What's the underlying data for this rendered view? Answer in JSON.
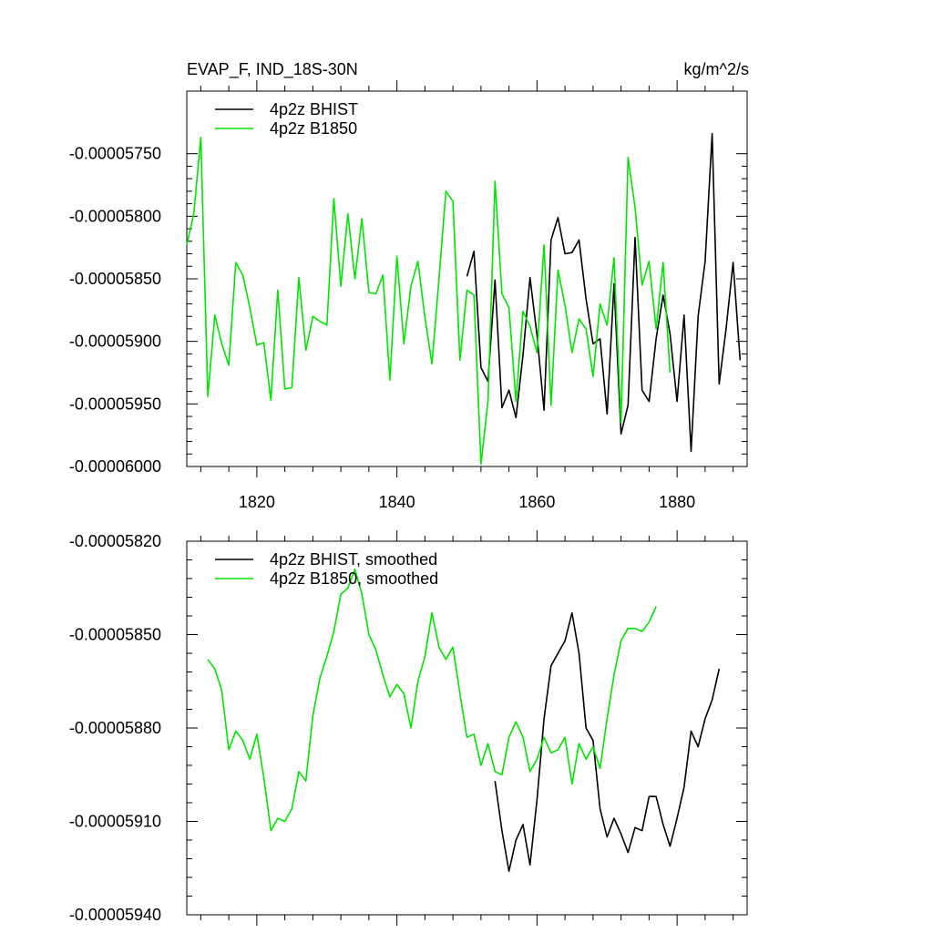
{
  "header": {
    "left_title": "EVAP_F, IND_18S-30N",
    "right_title": "kg/m^2/s"
  },
  "colors": {
    "bhist": "#000000",
    "b1850": "#00e600"
  },
  "chart_data": [
    {
      "type": "line",
      "title": "",
      "xlabel": "",
      "ylabel": "",
      "xlim": [
        1810,
        1890
      ],
      "ylim": [
        -6e-05,
        -5.7e-05
      ],
      "x_ticks": [
        1820,
        1840,
        1860,
        1880
      ],
      "x_tick_labels": [
        "1820",
        "1840",
        "1860",
        "1880"
      ],
      "y_ticks": [
        -5.75e-05,
        -5.8e-05,
        -5.85e-05,
        -5.9e-05,
        -5.95e-05,
        -6e-05
      ],
      "y_tick_labels": [
        "-0.00005750",
        "-0.00005800",
        "-0.00005850",
        "-0.00005900",
        "-0.00005950",
        "-0.00006000"
      ],
      "legend": "top-left",
      "series": [
        {
          "name": "4p2z BHIST",
          "color_key": "bhist",
          "x": [
            1850,
            1851,
            1852,
            1853,
            1854,
            1855,
            1856,
            1857,
            1858,
            1859,
            1860,
            1861,
            1862,
            1863,
            1864,
            1865,
            1866,
            1867,
            1868,
            1869,
            1870,
            1871,
            1872,
            1873,
            1874,
            1875,
            1876,
            1877,
            1878,
            1879,
            1880,
            1881,
            1882,
            1883,
            1884,
            1885,
            1886,
            1887,
            1888,
            1889
          ],
          "y": [
            -5.848e-05,
            -5.828e-05,
            -5.921e-05,
            -5.932e-05,
            -5.851e-05,
            -5.953e-05,
            -5.939e-05,
            -5.961e-05,
            -5.911e-05,
            -5.849e-05,
            -5.895e-05,
            -5.955e-05,
            -5.819e-05,
            -5.801e-05,
            -5.83e-05,
            -5.829e-05,
            -5.819e-05,
            -5.866e-05,
            -5.902e-05,
            -5.898e-05,
            -5.958e-05,
            -5.854e-05,
            -5.974e-05,
            -5.951e-05,
            -5.817e-05,
            -5.939e-05,
            -5.948e-05,
            -5.898e-05,
            -5.863e-05,
            -5.894e-05,
            -5.948e-05,
            -5.879e-05,
            -5.988e-05,
            -5.88e-05,
            -5.836e-05,
            -5.734e-05,
            -5.934e-05,
            -5.89e-05,
            -5.837e-05,
            -5.915e-05
          ]
        },
        {
          "name": "4p2z B1850",
          "color_key": "b1850",
          "x": [
            1810,
            1811,
            1812,
            1813,
            1814,
            1815,
            1816,
            1817,
            1818,
            1819,
            1820,
            1821,
            1822,
            1823,
            1824,
            1825,
            1826,
            1827,
            1828,
            1829,
            1830,
            1831,
            1832,
            1833,
            1834,
            1835,
            1836,
            1837,
            1838,
            1839,
            1840,
            1841,
            1842,
            1843,
            1844,
            1845,
            1846,
            1847,
            1848,
            1849,
            1850,
            1851,
            1852,
            1853,
            1854,
            1855,
            1856,
            1857,
            1858,
            1859,
            1860,
            1861,
            1862,
            1863,
            1864,
            1865,
            1866,
            1867,
            1868,
            1869,
            1870,
            1871,
            1872,
            1873,
            1874,
            1875,
            1876,
            1877,
            1878,
            1879
          ],
          "y": [
            -5.823e-05,
            -5.798e-05,
            -5.737e-05,
            -5.944e-05,
            -5.879e-05,
            -5.902e-05,
            -5.919e-05,
            -5.837e-05,
            -5.847e-05,
            -5.873e-05,
            -5.903e-05,
            -5.901e-05,
            -5.947e-05,
            -5.859e-05,
            -5.938e-05,
            -5.937e-05,
            -5.849e-05,
            -5.907e-05,
            -5.88e-05,
            -5.884e-05,
            -5.887e-05,
            -5.786e-05,
            -5.856e-05,
            -5.798e-05,
            -5.85e-05,
            -5.802e-05,
            -5.861e-05,
            -5.862e-05,
            -5.847e-05,
            -5.931e-05,
            -5.832e-05,
            -5.902e-05,
            -5.856e-05,
            -5.836e-05,
            -5.881e-05,
            -5.918e-05,
            -5.85e-05,
            -5.78e-05,
            -5.788e-05,
            -5.915e-05,
            -5.859e-05,
            -5.863e-05,
            -5.998e-05,
            -5.948e-05,
            -5.772e-05,
            -5.862e-05,
            -5.873e-05,
            -5.948e-05,
            -5.876e-05,
            -5.888e-05,
            -5.909e-05,
            -5.823e-05,
            -5.951e-05,
            -5.843e-05,
            -5.871e-05,
            -5.909e-05,
            -5.882e-05,
            -5.89e-05,
            -5.928e-05,
            -5.87e-05,
            -5.887e-05,
            -5.833e-05,
            -5.965e-05,
            -5.753e-05,
            -5.793e-05,
            -5.855e-05,
            -5.836e-05,
            -5.89e-05,
            -5.837e-05,
            -5.925e-05
          ]
        }
      ]
    },
    {
      "type": "line",
      "title": "",
      "xlabel": "",
      "ylabel": "",
      "xlim": [
        1810,
        1890
      ],
      "ylim": [
        -5.94e-05,
        -5.82e-05
      ],
      "x_ticks": [
        1820,
        1840,
        1860,
        1880
      ],
      "x_tick_labels": [],
      "y_ticks": [
        -5.82e-05,
        -5.85e-05,
        -5.88e-05,
        -5.91e-05,
        -5.94e-05
      ],
      "y_tick_labels": [
        "-0.00005820",
        "-0.00005850",
        "-0.00005880",
        "-0.00005910",
        "-0.00005940"
      ],
      "legend": "top-left",
      "series": [
        {
          "name": "4p2z BHIST, smoothed",
          "color_key": "bhist",
          "x": [
            1854,
            1855,
            1856,
            1857,
            1858,
            1859,
            1860,
            1861,
            1862,
            1863,
            1864,
            1865,
            1866,
            1867,
            1868,
            1869,
            1870,
            1871,
            1872,
            1873,
            1874,
            1875,
            1876,
            1877,
            1878,
            1879,
            1880,
            1881,
            1882,
            1883,
            1884,
            1885,
            1886
          ],
          "y": [
            -5.897e-05,
            -5.913e-05,
            -5.926e-05,
            -5.916e-05,
            -5.911e-05,
            -5.924e-05,
            -5.903e-05,
            -5.877e-05,
            -5.86e-05,
            -5.856e-05,
            -5.852e-05,
            -5.843e-05,
            -5.856e-05,
            -5.88e-05,
            -5.884e-05,
            -5.906e-05,
            -5.915e-05,
            -5.909e-05,
            -5.914e-05,
            -5.92e-05,
            -5.912e-05,
            -5.913e-05,
            -5.902e-05,
            -5.902e-05,
            -5.911e-05,
            -5.918e-05,
            -5.909e-05,
            -5.899e-05,
            -5.881e-05,
            -5.886e-05,
            -5.877e-05,
            -5.871e-05,
            -5.861e-05
          ]
        },
        {
          "name": "4p2z B1850, smoothed",
          "color_key": "b1850",
          "x": [
            1813,
            1814,
            1815,
            1816,
            1817,
            1818,
            1819,
            1820,
            1821,
            1822,
            1823,
            1824,
            1825,
            1826,
            1827,
            1828,
            1829,
            1830,
            1831,
            1832,
            1833,
            1834,
            1835,
            1836,
            1837,
            1838,
            1839,
            1840,
            1841,
            1842,
            1843,
            1844,
            1845,
            1846,
            1847,
            1848,
            1849,
            1850,
            1851,
            1852,
            1853,
            1854,
            1855,
            1856,
            1857,
            1858,
            1859,
            1860,
            1861,
            1862,
            1863,
            1864,
            1865,
            1866,
            1867,
            1868,
            1869,
            1870,
            1871,
            1872,
            1873,
            1874,
            1875,
            1876,
            1877
          ],
          "y": [
            -5.858e-05,
            -5.861e-05,
            -5.868e-05,
            -5.887e-05,
            -5.881e-05,
            -5.884e-05,
            -5.89e-05,
            -5.882e-05,
            -5.896e-05,
            -5.913e-05,
            -5.909e-05,
            -5.91e-05,
            -5.906e-05,
            -5.894e-05,
            -5.897e-05,
            -5.876e-05,
            -5.864e-05,
            -5.857e-05,
            -5.849e-05,
            -5.837e-05,
            -5.835e-05,
            -5.829e-05,
            -5.837e-05,
            -5.85e-05,
            -5.855e-05,
            -5.863e-05,
            -5.87e-05,
            -5.866e-05,
            -5.869e-05,
            -5.88e-05,
            -5.865e-05,
            -5.857e-05,
            -5.843e-05,
            -5.854e-05,
            -5.858e-05,
            -5.854e-05,
            -5.869e-05,
            -5.883e-05,
            -5.882e-05,
            -5.892e-05,
            -5.885e-05,
            -5.894e-05,
            -5.895e-05,
            -5.883e-05,
            -5.878e-05,
            -5.883e-05,
            -5.894e-05,
            -5.89e-05,
            -5.883e-05,
            -5.888e-05,
            -5.887e-05,
            -5.883e-05,
            -5.898e-05,
            -5.885e-05,
            -5.89e-05,
            -5.886e-05,
            -5.893e-05,
            -5.877e-05,
            -5.863e-05,
            -5.852e-05,
            -5.848e-05,
            -5.848e-05,
            -5.849e-05,
            -5.846e-05,
            -5.841e-05
          ]
        }
      ]
    }
  ]
}
